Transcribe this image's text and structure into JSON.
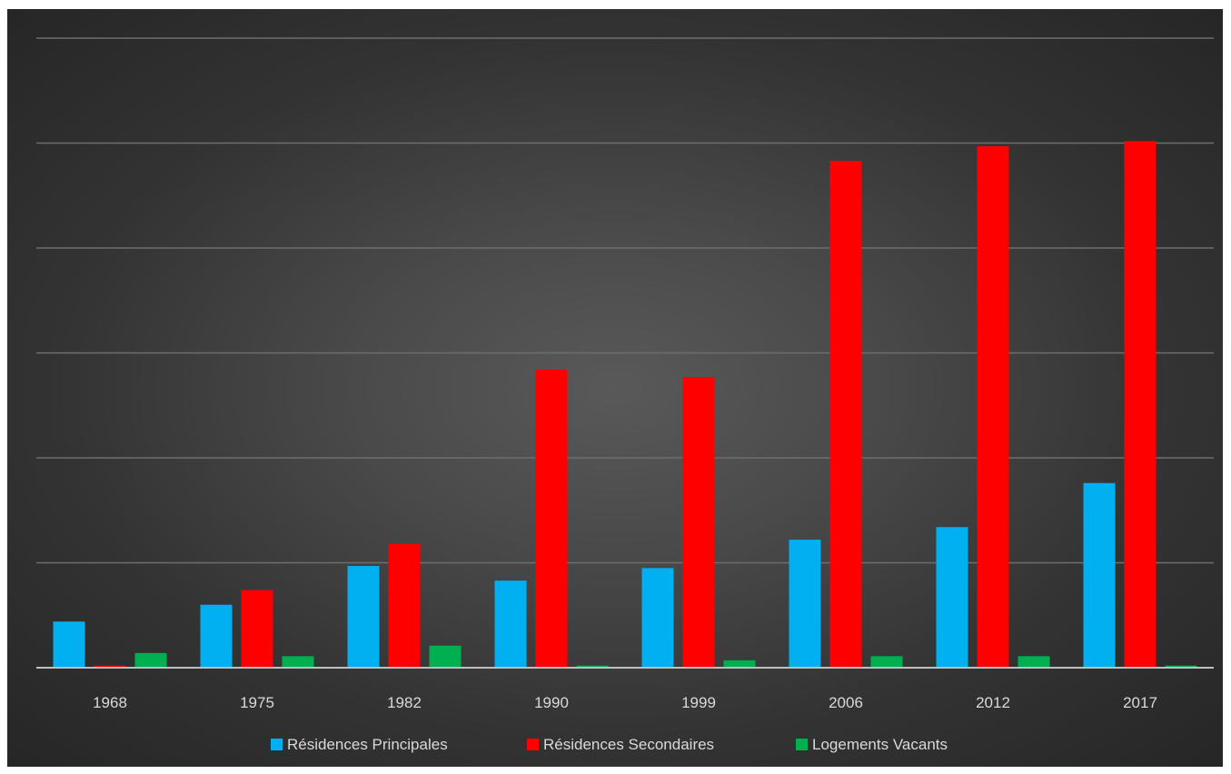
{
  "chart_data": {
    "type": "bar",
    "title": "",
    "xlabel": "",
    "ylabel": "",
    "categories": [
      "1968",
      "1975",
      "1982",
      "1990",
      "1999",
      "2006",
      "2012",
      "2017"
    ],
    "series": [
      {
        "name": "Résidences Principales",
        "color": "#00b0f0",
        "values": [
          44,
          60,
          97,
          83,
          95,
          122,
          134,
          176
        ]
      },
      {
        "name": "Résidences Secondaires",
        "color": "#ff0000",
        "values": [
          2,
          74,
          118,
          284,
          277,
          483,
          497,
          502
        ]
      },
      {
        "name": "Logements Vacants",
        "color": "#00b050",
        "values": [
          14,
          11,
          21,
          2,
          7,
          11,
          11,
          2
        ]
      }
    ],
    "ylim": [
      0,
      600
    ],
    "gridlines": [
      100,
      200,
      300,
      400,
      500,
      600
    ],
    "grid": true,
    "legend_position": "bottom"
  }
}
